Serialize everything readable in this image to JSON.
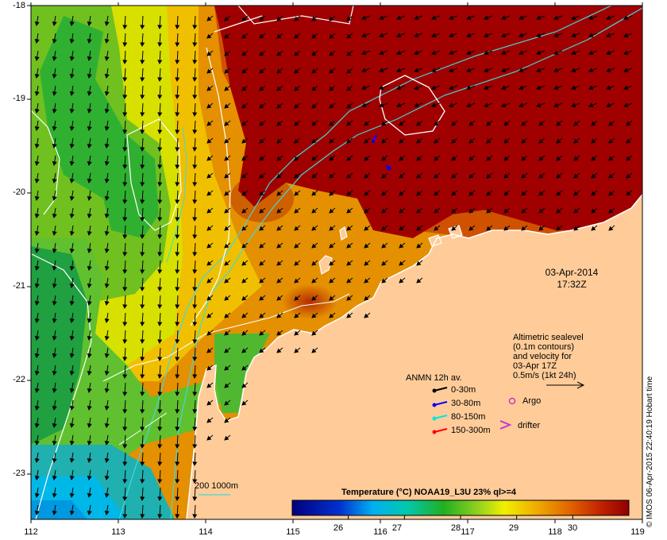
{
  "map": {
    "lon_range": [
      112,
      119
    ],
    "lat_range": [
      -23.5,
      -18
    ],
    "x_ticks": [
      "112",
      "113",
      "114",
      "115",
      "116",
      "117",
      "118",
      "119"
    ],
    "y_ticks": [
      "-18",
      "-19",
      "-20",
      "-21",
      "-22",
      "-23"
    ]
  },
  "datetime": {
    "date": "03-Apr-2014",
    "time": "17:32Z"
  },
  "altimetry_note": {
    "lines": [
      "Altimetric sealevel",
      "(0.1m contours)",
      "and velocity for",
      "03-Apr 17Z",
      "0.5m/s (1kt 24h)"
    ]
  },
  "anmn_legend": {
    "title": "ANMN 12h av.",
    "items": [
      {
        "label": "0-30m",
        "color": "#000000"
      },
      {
        "label": "30-80m",
        "color": "#0000ff"
      },
      {
        "label": "80-150m",
        "color": "#00e5e5"
      },
      {
        "label": "150-300m",
        "color": "#ff0000"
      }
    ]
  },
  "markers": {
    "argo": "Argo",
    "drifter": "drifter"
  },
  "isobath_label": "200  1000m",
  "colorbar": {
    "title": "Temperature (°C) NOAA19_L3U 23% ql>=4",
    "range": [
      25,
      31
    ],
    "ticks": [
      "26",
      "27",
      "28",
      "29",
      "30"
    ]
  },
  "credit": "© IMOS 06-Apr-2015 22:40:19 Hobart time",
  "colors": {
    "land": "#ffcc99",
    "warm": "#9e0000",
    "argo": "#cc33cc",
    "drifter": "#cc33cc"
  }
}
